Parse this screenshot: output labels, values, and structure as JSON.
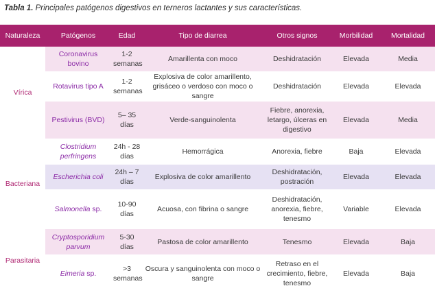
{
  "caption": {
    "label": "Tabla 1.",
    "text": "Principales patógenos digestivos en terneros lactantes y sus características."
  },
  "table": {
    "headers": [
      "Naturaleza",
      "Patógenos",
      "Edad",
      "Tipo de diarrea",
      "Otros signos",
      "Morbilidad",
      "Mortalidad"
    ],
    "groups": [
      {
        "naturaleza": "Vírica"
      },
      {
        "naturaleza": "Bacteriana"
      },
      {
        "naturaleza": "Parasitaria"
      }
    ],
    "rows": [
      {
        "patogeno": "Coronavirus bovino",
        "italic": "",
        "suffix": "",
        "edad": "1-2 semanas",
        "diarrea": "Amarillenta con moco",
        "signos": "Deshidratación",
        "morbilidad": "Elevada",
        "mortalidad": "Media"
      },
      {
        "patogeno": "Rotavirus tipo A",
        "italic": "",
        "suffix": "",
        "edad": "1-2 semanas",
        "diarrea": "Explosiva de color amarillento, grisáceo o verdoso con moco o sangre",
        "signos": "Deshidratación",
        "morbilidad": "Elevada",
        "mortalidad": "Elevada"
      },
      {
        "patogeno": "Pestivirus (BVD)",
        "italic": "",
        "suffix": "",
        "edad": "5– 35 días",
        "diarrea": "Verde-sanguinolenta",
        "signos": "Fiebre, anorexia, letargo, úlceras en digestivo",
        "morbilidad": "Elevada",
        "mortalidad": "Media"
      },
      {
        "patogeno": "",
        "italic": "Clostridium perfringens",
        "suffix": "",
        "edad": "24h - 28 días",
        "diarrea": "Hemorrágica",
        "signos": "Anorexia, fiebre",
        "morbilidad": "Baja",
        "mortalidad": "Elevada"
      },
      {
        "patogeno": "",
        "italic": "Escherichia coli",
        "suffix": "",
        "edad": "24h – 7 días",
        "diarrea": "Explosiva de color amarillento",
        "signos": "Deshidratación, postración",
        "morbilidad": "Elevada",
        "mortalidad": "Elevada"
      },
      {
        "patogeno": "",
        "italic": "Salmonella",
        "suffix": " sp.",
        "edad": "10-90 días",
        "diarrea": "Acuosa, con fibrina o sangre",
        "signos": "Deshidratación, anorexia, fiebre, tenesmo",
        "morbilidad": "Variable",
        "mortalidad": "Elevada"
      },
      {
        "patogeno": "",
        "italic": "Cryptosporidium parvum",
        "suffix": "",
        "edad": "5-30 días",
        "diarrea": "Pastosa de color amarillento",
        "signos": "Tenesmo",
        "morbilidad": "Elevada",
        "mortalidad": "Baja"
      },
      {
        "patogeno": "",
        "italic": "Eimeria",
        "suffix": " sp.",
        "edad": ">3 semanas",
        "diarrea": "Oscura y sanguinolenta con moco o sangre",
        "signos": "Retraso en el crecimiento, fiebre, tenesmo",
        "morbilidad": "Elevada",
        "mortalidad": "Baja"
      }
    ]
  },
  "colors": {
    "header_bg": "#a8226d",
    "row_pink": "#f5e1ef",
    "row_lavender": "#e6e1f3",
    "pathogen_text": "#8b2aa6",
    "naturaleza_text": "#b02a74"
  }
}
